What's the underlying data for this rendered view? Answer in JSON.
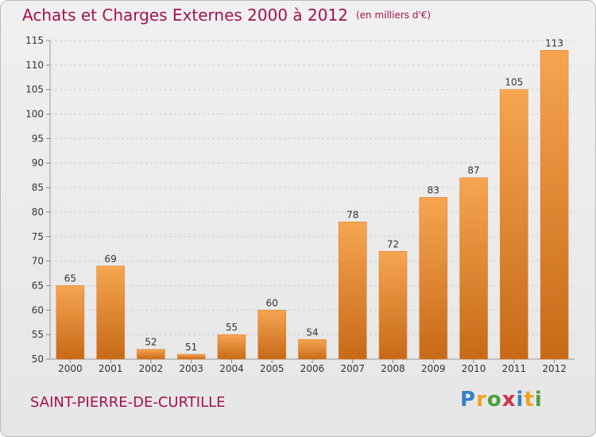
{
  "chart_data": {
    "type": "bar",
    "title": "Achats et Charges Externes 2000 à 2012",
    "unit": "(en milliers d'€)",
    "categories": [
      "2000",
      "2001",
      "2002",
      "2003",
      "2004",
      "2005",
      "2006",
      "2007",
      "2008",
      "2009",
      "2010",
      "2011",
      "2012"
    ],
    "values": [
      65,
      69,
      52,
      51,
      55,
      60,
      54,
      78,
      72,
      83,
      87,
      105,
      113
    ],
    "ylim": [
      50,
      115
    ],
    "yticks": [
      50,
      55,
      60,
      65,
      70,
      75,
      80,
      85,
      90,
      95,
      100,
      105,
      110,
      115
    ],
    "grid": true,
    "bar_color": "#e8883a",
    "title_color": "#a3124f"
  },
  "commune": "SAINT-PIERRE-DE-CURTILLE",
  "logo": {
    "text": "Proxiti",
    "letters": [
      {
        "ch": "P",
        "color": "#3a7fc4"
      },
      {
        "ch": "r",
        "color": "#f0a020"
      },
      {
        "ch": "o",
        "color": "#4aa040"
      },
      {
        "ch": "x",
        "color": "#d0304a"
      },
      {
        "ch": "i",
        "color": "#3a7fc4"
      },
      {
        "ch": "t",
        "color": "#f0a020"
      },
      {
        "ch": "i",
        "color": "#4aa040"
      }
    ]
  }
}
